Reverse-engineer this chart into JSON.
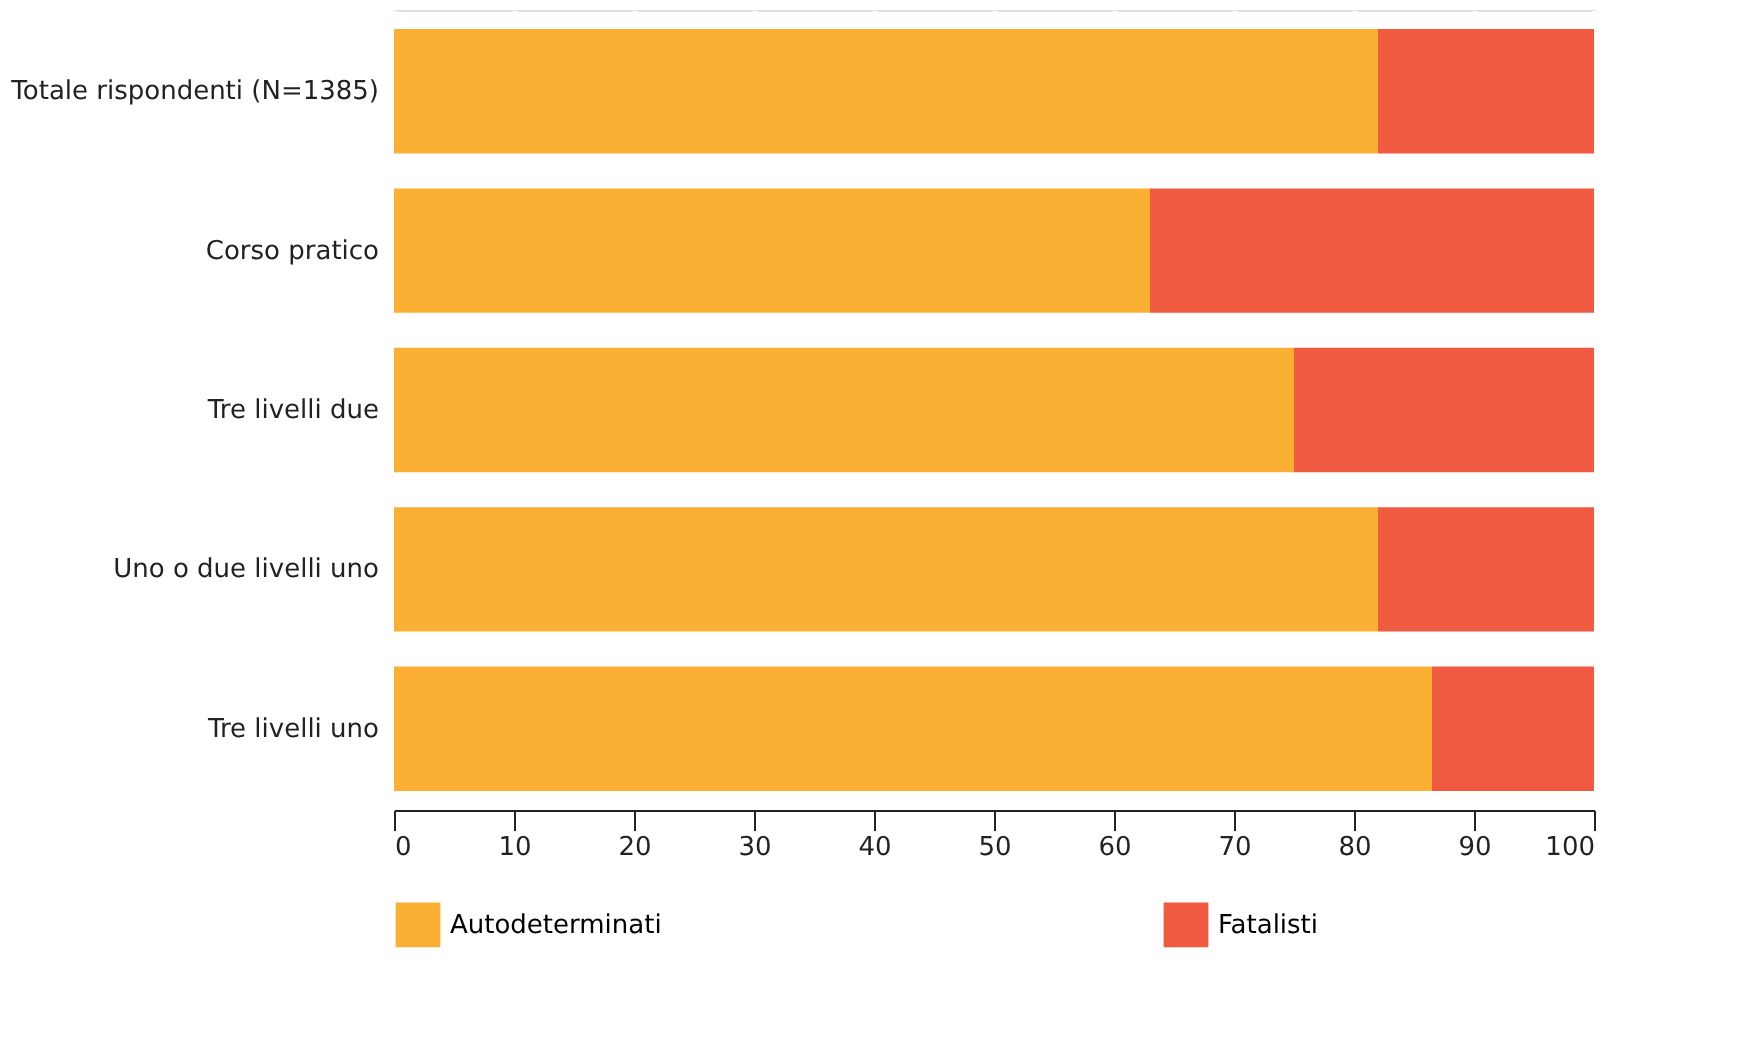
{
  "chart_data": {
    "type": "bar",
    "orientation": "horizontal",
    "stacked": true,
    "categories": [
      "Totale rispondenti (N=1385)",
      "Corso pratico",
      "Tre livelli due",
      "Uno o due livelli uno",
      "Tre livelli uno"
    ],
    "series": [
      {
        "name": "Autodeterminati",
        "color": "#fbb034",
        "values": [
          82,
          63,
          75,
          82,
          86.5
        ]
      },
      {
        "name": "Fatalisti",
        "color": "#ef5a40",
        "values": [
          18,
          37,
          25,
          18,
          13.5
        ]
      }
    ],
    "xlim": [
      0,
      100
    ],
    "xticks": [
      0,
      10,
      20,
      30,
      40,
      50,
      60,
      70,
      80,
      90,
      100
    ],
    "grid": "x",
    "legend": "bottom"
  }
}
